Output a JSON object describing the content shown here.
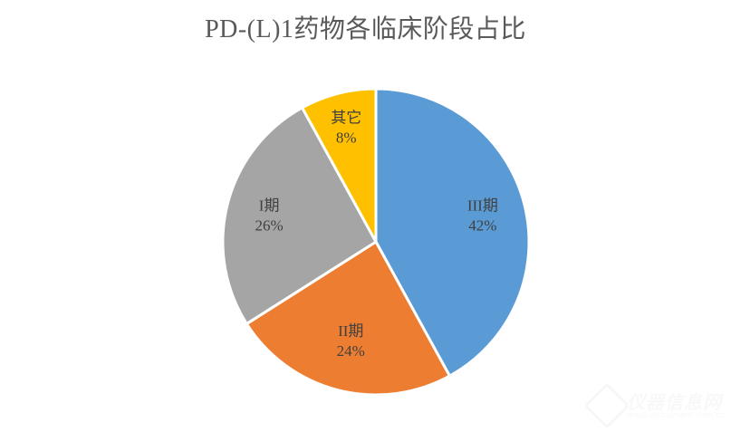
{
  "title": "PD-(L)1药物各临床阶段占比",
  "chart_data": {
    "type": "pie",
    "title": "PD-(L)1药物各临床阶段占比",
    "categories": [
      "III期",
      "II期",
      "I期",
      "其它"
    ],
    "values": [
      42,
      24,
      26,
      8
    ],
    "unit": "%",
    "colors": [
      "#5B9BD5",
      "#ED7D31",
      "#A5A5A5",
      "#FFC000"
    ],
    "start_angle": "12 o'clock",
    "direction": "clockwise",
    "data_labels": [
      {
        "name": "III期",
        "value": "42%"
      },
      {
        "name": "II期",
        "value": "24%"
      },
      {
        "name": "I期",
        "value": "26%"
      },
      {
        "name": "其它",
        "value": "8%"
      }
    ],
    "legend": "none"
  },
  "watermark": {
    "text": "仪器信息网",
    "url": "www.instrument.com.cn"
  }
}
